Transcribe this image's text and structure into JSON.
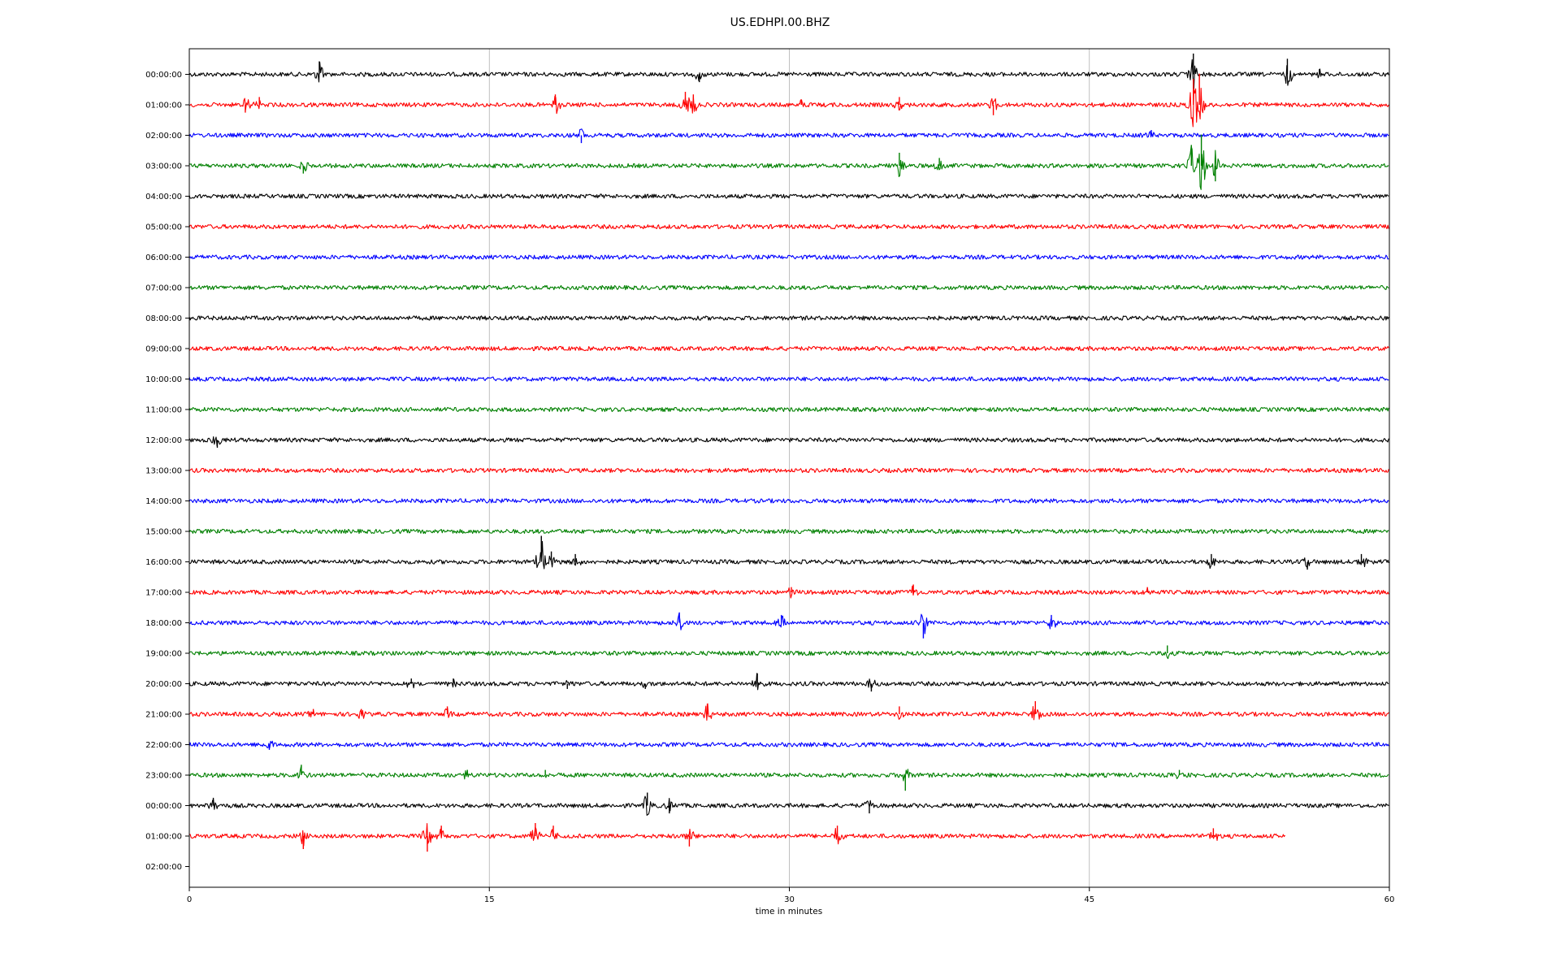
{
  "chart_data": {
    "type": "line",
    "title": "US.EDHPI.00.BHZ",
    "xlabel": "time in minutes",
    "ylabel": "",
    "xlim": [
      0,
      60
    ],
    "xticks": [
      "0",
      "15",
      "30",
      "45",
      "60"
    ],
    "x_gridlines": [
      15,
      30,
      45
    ],
    "grid": "vertical only",
    "legend": "none",
    "row_labels": [
      "00:00:00",
      "01:00:00",
      "02:00:00",
      "03:00:00",
      "04:00:00",
      "05:00:00",
      "06:00:00",
      "07:00:00",
      "08:00:00",
      "09:00:00",
      "10:00:00",
      "11:00:00",
      "12:00:00",
      "13:00:00",
      "14:00:00",
      "15:00:00",
      "16:00:00",
      "17:00:00",
      "18:00:00",
      "19:00:00",
      "20:00:00",
      "21:00:00",
      "22:00:00",
      "23:00:00",
      "00:00:00",
      "01:00:00",
      "02:00:00"
    ],
    "color_cycle": [
      "#000000",
      "#ff0000",
      "#0000ff",
      "#008000"
    ],
    "traces": [
      {
        "row": 0,
        "end_minute": 60,
        "events": [
          [
            6.5,
            5
          ],
          [
            25.5,
            -3
          ],
          [
            50.2,
            8
          ],
          [
            54.9,
            6
          ],
          [
            56.5,
            2
          ]
        ]
      },
      {
        "row": 1,
        "end_minute": 60,
        "events": [
          [
            2.8,
            -3
          ],
          [
            3.5,
            3
          ],
          [
            18.3,
            4
          ],
          [
            24.8,
            5
          ],
          [
            25.2,
            4
          ],
          [
            30.6,
            2
          ],
          [
            35.5,
            3
          ],
          [
            40.2,
            -4
          ],
          [
            50.2,
            10
          ],
          [
            50.5,
            12
          ]
        ]
      },
      {
        "row": 2,
        "end_minute": 60,
        "events": [
          [
            19.6,
            -3
          ],
          [
            48.1,
            2
          ]
        ]
      },
      {
        "row": 3,
        "end_minute": 60,
        "events": [
          [
            5.7,
            -3
          ],
          [
            35.5,
            5
          ],
          [
            37.5,
            3
          ],
          [
            50.1,
            8
          ],
          [
            50.6,
            12
          ],
          [
            51.3,
            -6
          ]
        ]
      },
      {
        "row": 4,
        "end_minute": 60,
        "events": []
      },
      {
        "row": 5,
        "end_minute": 60,
        "events": []
      },
      {
        "row": 6,
        "end_minute": 60,
        "events": []
      },
      {
        "row": 7,
        "end_minute": 60,
        "events": []
      },
      {
        "row": 8,
        "end_minute": 60,
        "events": []
      },
      {
        "row": 9,
        "end_minute": 60,
        "events": []
      },
      {
        "row": 10,
        "end_minute": 60,
        "events": []
      },
      {
        "row": 11,
        "end_minute": 60,
        "events": []
      },
      {
        "row": 12,
        "end_minute": 60,
        "events": [
          [
            1.4,
            -3
          ]
        ]
      },
      {
        "row": 13,
        "end_minute": 60,
        "events": []
      },
      {
        "row": 14,
        "end_minute": 60,
        "events": []
      },
      {
        "row": 15,
        "end_minute": 60,
        "events": []
      },
      {
        "row": 16,
        "end_minute": 60,
        "events": [
          [
            17.6,
            10
          ],
          [
            18.1,
            4
          ],
          [
            19.3,
            3
          ],
          [
            51.1,
            3
          ],
          [
            55.9,
            -3
          ],
          [
            58.6,
            3
          ]
        ]
      },
      {
        "row": 17,
        "end_minute": 60,
        "events": [
          [
            30.1,
            2
          ],
          [
            36.2,
            3
          ],
          [
            47.9,
            2
          ]
        ]
      },
      {
        "row": 18,
        "end_minute": 60,
        "events": [
          [
            24.5,
            4
          ],
          [
            29.6,
            3
          ],
          [
            36.7,
            -6
          ],
          [
            43.1,
            3
          ]
        ]
      },
      {
        "row": 19,
        "end_minute": 60,
        "events": [
          [
            48.9,
            3
          ]
        ]
      },
      {
        "row": 20,
        "end_minute": 60,
        "events": [
          [
            11.1,
            2
          ],
          [
            13.2,
            2
          ],
          [
            18.9,
            -2
          ],
          [
            22.8,
            -2
          ],
          [
            28.4,
            4
          ],
          [
            34.1,
            -3
          ]
        ]
      },
      {
        "row": 21,
        "end_minute": 60,
        "events": [
          [
            6.2,
            2
          ],
          [
            8.6,
            2
          ],
          [
            12.9,
            3
          ],
          [
            25.9,
            4
          ],
          [
            35.5,
            3
          ],
          [
            42.3,
            5
          ]
        ]
      },
      {
        "row": 22,
        "end_minute": 60,
        "events": [
          [
            4.0,
            -2
          ]
        ]
      },
      {
        "row": 23,
        "end_minute": 60,
        "events": [
          [
            5.6,
            4
          ],
          [
            13.9,
            2
          ],
          [
            17.8,
            2
          ],
          [
            35.8,
            -6
          ],
          [
            49.5,
            2
          ]
        ]
      },
      {
        "row": 24,
        "end_minute": 60,
        "events": [
          [
            1.2,
            3
          ],
          [
            22.9,
            5
          ],
          [
            24.0,
            -3
          ],
          [
            34.0,
            -3
          ]
        ]
      },
      {
        "row": 25,
        "end_minute": 54.8,
        "events": [
          [
            5.7,
            -5
          ],
          [
            11.9,
            -6
          ],
          [
            12.6,
            4
          ],
          [
            17.3,
            5
          ],
          [
            18.2,
            4
          ],
          [
            25.0,
            -4
          ],
          [
            32.4,
            4
          ],
          [
            51.2,
            3
          ]
        ]
      }
    ]
  }
}
